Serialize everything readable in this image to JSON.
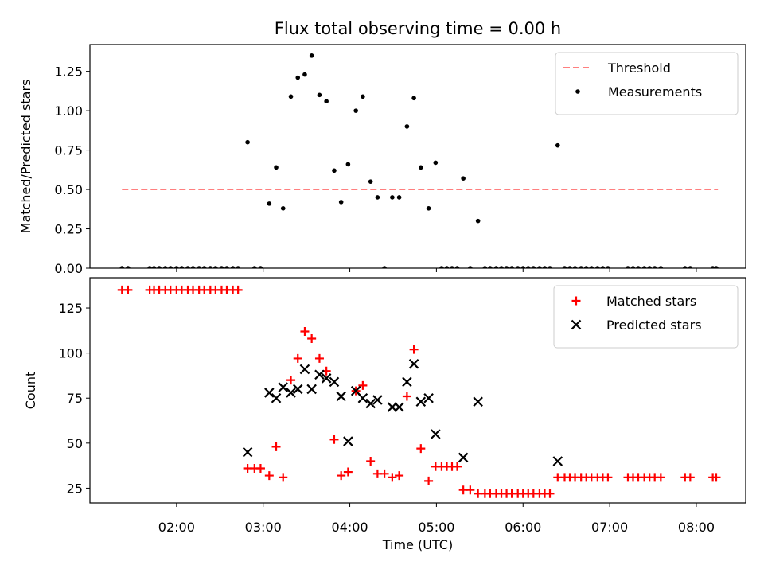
{
  "chart_data": {
    "title": "Flux total observing time = 0.00 h",
    "xlabel": "Time (UTC)",
    "x_unit": "hours UTC",
    "x_ticks": [
      2,
      3,
      4,
      5,
      6,
      7,
      8
    ],
    "x_tick_labels": [
      "02:00",
      "03:00",
      "04:00",
      "05:00",
      "06:00",
      "07:00",
      "08:00"
    ],
    "xlim": [
      1.0,
      8.57
    ],
    "panels": [
      {
        "type": "scatter",
        "ylabel": "Matched/Predicted stars",
        "ylim": [
          0.0,
          1.42
        ],
        "y_ticks": [
          0.0,
          0.25,
          0.5,
          0.75,
          1.0,
          1.25
        ],
        "y_tick_labels": [
          "0.00",
          "0.25",
          "0.50",
          "0.75",
          "1.00",
          "1.25"
        ],
        "legend_position": "top-right",
        "threshold": {
          "name": "Threshold",
          "y": 0.5,
          "x_range": [
            1.37,
            8.25
          ],
          "color": "#ff7f7f",
          "style": "dashed"
        },
        "series": [
          {
            "name": "Measurements",
            "color": "#000000",
            "marker": "dot",
            "points": [
              [
                1.37,
                0.0
              ],
              [
                1.44,
                0.0
              ],
              [
                1.69,
                0.0
              ],
              [
                1.74,
                0.0
              ],
              [
                1.8,
                0.0
              ],
              [
                1.87,
                0.0
              ],
              [
                1.93,
                0.0
              ],
              [
                2.0,
                0.0
              ],
              [
                2.06,
                0.0
              ],
              [
                2.13,
                0.0
              ],
              [
                2.19,
                0.0
              ],
              [
                2.26,
                0.0
              ],
              [
                2.32,
                0.0
              ],
              [
                2.39,
                0.0
              ],
              [
                2.45,
                0.0
              ],
              [
                2.52,
                0.0
              ],
              [
                2.58,
                0.0
              ],
              [
                2.65,
                0.0
              ],
              [
                2.71,
                0.0
              ],
              [
                2.82,
                0.8
              ],
              [
                2.9,
                0.0
              ],
              [
                2.97,
                0.0
              ],
              [
                3.07,
                0.41
              ],
              [
                3.15,
                0.64
              ],
              [
                3.23,
                0.38
              ],
              [
                3.32,
                1.09
              ],
              [
                3.4,
                1.21
              ],
              [
                3.48,
                1.23
              ],
              [
                3.56,
                1.35
              ],
              [
                3.65,
                1.1
              ],
              [
                3.73,
                1.06
              ],
              [
                3.82,
                0.62
              ],
              [
                3.9,
                0.42
              ],
              [
                3.98,
                0.66
              ],
              [
                4.07,
                1.0
              ],
              [
                4.15,
                1.09
              ],
              [
                4.24,
                0.55
              ],
              [
                4.32,
                0.45
              ],
              [
                4.4,
                0.0
              ],
              [
                4.49,
                0.45
              ],
              [
                4.57,
                0.45
              ],
              [
                4.66,
                0.9
              ],
              [
                4.74,
                1.08
              ],
              [
                4.82,
                0.64
              ],
              [
                4.91,
                0.38
              ],
              [
                4.99,
                0.67
              ],
              [
                5.06,
                0.0
              ],
              [
                5.12,
                0.0
              ],
              [
                5.18,
                0.0
              ],
              [
                5.24,
                0.0
              ],
              [
                5.31,
                0.57
              ],
              [
                5.39,
                0.0
              ],
              [
                5.48,
                0.3
              ],
              [
                5.56,
                0.0
              ],
              [
                5.62,
                0.0
              ],
              [
                5.69,
                0.0
              ],
              [
                5.75,
                0.0
              ],
              [
                5.81,
                0.0
              ],
              [
                5.87,
                0.0
              ],
              [
                5.94,
                0.0
              ],
              [
                6.0,
                0.0
              ],
              [
                6.06,
                0.0
              ],
              [
                6.12,
                0.0
              ],
              [
                6.19,
                0.0
              ],
              [
                6.25,
                0.0
              ],
              [
                6.31,
                0.0
              ],
              [
                6.4,
                0.78
              ],
              [
                6.48,
                0.0
              ],
              [
                6.54,
                0.0
              ],
              [
                6.6,
                0.0
              ],
              [
                6.67,
                0.0
              ],
              [
                6.73,
                0.0
              ],
              [
                6.79,
                0.0
              ],
              [
                6.86,
                0.0
              ],
              [
                6.92,
                0.0
              ],
              [
                6.98,
                0.0
              ],
              [
                7.21,
                0.0
              ],
              [
                7.27,
                0.0
              ],
              [
                7.33,
                0.0
              ],
              [
                7.4,
                0.0
              ],
              [
                7.46,
                0.0
              ],
              [
                7.52,
                0.0
              ],
              [
                7.59,
                0.0
              ],
              [
                7.87,
                0.0
              ],
              [
                7.93,
                0.0
              ],
              [
                8.19,
                0.0
              ],
              [
                8.23,
                0.0
              ]
            ]
          }
        ]
      },
      {
        "type": "scatter",
        "ylabel": "Count",
        "ylim": [
          16.8,
          141.8
        ],
        "y_ticks": [
          25,
          50,
          75,
          100,
          125
        ],
        "y_tick_labels": [
          "25",
          "50",
          "75",
          "100",
          "125"
        ],
        "legend_position": "top-right",
        "series": [
          {
            "name": "Matched stars",
            "color": "#ff0000",
            "marker": "plus",
            "points": [
              [
                1.37,
                135
              ],
              [
                1.44,
                135
              ],
              [
                1.69,
                135
              ],
              [
                1.74,
                135
              ],
              [
                1.8,
                135
              ],
              [
                1.87,
                135
              ],
              [
                1.93,
                135
              ],
              [
                2.0,
                135
              ],
              [
                2.06,
                135
              ],
              [
                2.13,
                135
              ],
              [
                2.19,
                135
              ],
              [
                2.26,
                135
              ],
              [
                2.32,
                135
              ],
              [
                2.39,
                135
              ],
              [
                2.45,
                135
              ],
              [
                2.52,
                135
              ],
              [
                2.58,
                135
              ],
              [
                2.65,
                135
              ],
              [
                2.71,
                135
              ],
              [
                2.82,
                36
              ],
              [
                2.9,
                36
              ],
              [
                2.97,
                36
              ],
              [
                3.07,
                32
              ],
              [
                3.15,
                48
              ],
              [
                3.23,
                31
              ],
              [
                3.32,
                85
              ],
              [
                3.4,
                97
              ],
              [
                3.48,
                112
              ],
              [
                3.56,
                108
              ],
              [
                3.65,
                97
              ],
              [
                3.73,
                90
              ],
              [
                3.82,
                52
              ],
              [
                3.9,
                32
              ],
              [
                3.98,
                34
              ],
              [
                4.07,
                79
              ],
              [
                4.15,
                82
              ],
              [
                4.24,
                40
              ],
              [
                4.32,
                33
              ],
              [
                4.4,
                33
              ],
              [
                4.49,
                31
              ],
              [
                4.57,
                32
              ],
              [
                4.66,
                76
              ],
              [
                4.74,
                102
              ],
              [
                4.82,
                47
              ],
              [
                4.91,
                29
              ],
              [
                4.99,
                37
              ],
              [
                5.06,
                37
              ],
              [
                5.12,
                37
              ],
              [
                5.18,
                37
              ],
              [
                5.24,
                37
              ],
              [
                5.31,
                24
              ],
              [
                5.39,
                24
              ],
              [
                5.48,
                22
              ],
              [
                5.56,
                22
              ],
              [
                5.62,
                22
              ],
              [
                5.69,
                22
              ],
              [
                5.75,
                22
              ],
              [
                5.81,
                22
              ],
              [
                5.87,
                22
              ],
              [
                5.94,
                22
              ],
              [
                6.0,
                22
              ],
              [
                6.06,
                22
              ],
              [
                6.12,
                22
              ],
              [
                6.19,
                22
              ],
              [
                6.25,
                22
              ],
              [
                6.31,
                22
              ],
              [
                6.4,
                31
              ],
              [
                6.48,
                31
              ],
              [
                6.54,
                31
              ],
              [
                6.6,
                31
              ],
              [
                6.67,
                31
              ],
              [
                6.73,
                31
              ],
              [
                6.79,
                31
              ],
              [
                6.86,
                31
              ],
              [
                6.92,
                31
              ],
              [
                6.98,
                31
              ],
              [
                7.21,
                31
              ],
              [
                7.27,
                31
              ],
              [
                7.33,
                31
              ],
              [
                7.4,
                31
              ],
              [
                7.46,
                31
              ],
              [
                7.52,
                31
              ],
              [
                7.59,
                31
              ],
              [
                7.87,
                31
              ],
              [
                7.93,
                31
              ],
              [
                8.19,
                31
              ],
              [
                8.23,
                31
              ]
            ]
          },
          {
            "name": "Predicted stars",
            "color": "#000000",
            "marker": "x",
            "points": [
              [
                2.82,
                45
              ],
              [
                3.07,
                78
              ],
              [
                3.15,
                75
              ],
              [
                3.23,
                81
              ],
              [
                3.32,
                78
              ],
              [
                3.4,
                80
              ],
              [
                3.48,
                91
              ],
              [
                3.56,
                80
              ],
              [
                3.65,
                88
              ],
              [
                3.73,
                86
              ],
              [
                3.82,
                84
              ],
              [
                3.9,
                76
              ],
              [
                3.98,
                51
              ],
              [
                4.07,
                79
              ],
              [
                4.15,
                75
              ],
              [
                4.24,
                72
              ],
              [
                4.32,
                74
              ],
              [
                4.49,
                70
              ],
              [
                4.57,
                70
              ],
              [
                4.66,
                84
              ],
              [
                4.74,
                94
              ],
              [
                4.82,
                73
              ],
              [
                4.91,
                75
              ],
              [
                4.99,
                55
              ],
              [
                5.31,
                42
              ],
              [
                5.48,
                73
              ],
              [
                6.4,
                40
              ]
            ]
          }
        ]
      }
    ]
  }
}
